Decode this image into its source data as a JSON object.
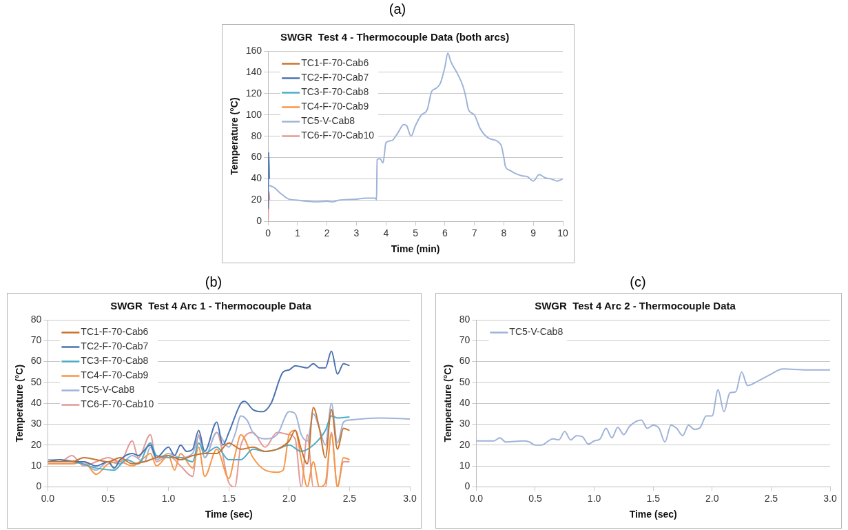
{
  "chart_data": [
    {
      "type": "line",
      "title": "SWGR  Test 4 - Thermocouple Data (both arcs)",
      "xlabel": "Time (min)",
      "ylabel": "Temperature (°C)",
      "annotations": [
        "(a)"
      ],
      "xlim": [
        0,
        10
      ],
      "xticks": [
        0,
        1,
        2,
        3,
        4,
        5,
        6,
        7,
        8,
        9,
        10
      ],
      "ylim": [
        0,
        160
      ],
      "yticks": [
        0,
        20,
        40,
        60,
        80,
        100,
        120,
        140,
        160
      ],
      "grid": "y",
      "legend": "top left",
      "marker": "none",
      "line_style": "solid",
      "series": [
        {
          "name": "TC1-F-70-Cab6",
          "color": "#c8732e"
        },
        {
          "name": "TC2-F-70-Cab7",
          "color": "#4a72b0",
          "x": [
            0,
            0.02,
            0.04
          ],
          "values": [
            12,
            65,
            40
          ]
        },
        {
          "name": "TC3-F-70-Cab8",
          "color": "#4bacc6"
        },
        {
          "name": "TC4-F-70-Cab9",
          "color": "#f79646"
        },
        {
          "name": "TC5-V-Cab8",
          "color": "#9fb3d9",
          "x": [
            0.03,
            0.2,
            0.4,
            0.7,
            1,
            1.3,
            1.6,
            2,
            2.2,
            2.4,
            3,
            3.3,
            3.65,
            3.68,
            3.7,
            3.8,
            3.9,
            4.0,
            4.2,
            4.4,
            4.6,
            4.7,
            4.85,
            5.0,
            5.2,
            5.4,
            5.55,
            5.7,
            5.85,
            6.0,
            6.1,
            6.2,
            6.4,
            6.6,
            6.7,
            6.8,
            7.0,
            7.2,
            7.5,
            7.9,
            8.0,
            8.05,
            8.2,
            8.4,
            8.6,
            8.8,
            9.0,
            9.2,
            9.4,
            9.6,
            9.8,
            10
          ],
          "values": [
            34,
            32,
            27,
            21,
            20,
            19,
            18.5,
            19,
            18.5,
            20,
            21,
            22,
            22,
            20,
            58,
            59,
            55,
            74,
            76,
            83,
            91,
            90,
            80,
            90,
            100,
            105,
            122,
            125,
            130,
            145,
            158,
            150,
            140,
            128,
            118,
            105,
            100,
            87,
            78,
            72,
            60,
            52,
            48,
            45,
            43,
            42,
            38,
            44,
            41,
            40,
            38,
            40
          ]
        },
        {
          "name": "TC6-F-70-Cab10",
          "color": "#e39a97",
          "x": [
            0,
            0.03,
            0.05
          ],
          "values": [
            0,
            28,
            20
          ]
        }
      ]
    },
    {
      "type": "line",
      "title": "SWGR  Test 4 Arc 1 - Thermocouple Data",
      "xlabel": "Time (sec)",
      "ylabel": "Temperature (°C)",
      "annotations": [
        "(b)"
      ],
      "xlim": [
        0,
        3
      ],
      "xticks": [
        {
          "value": 0,
          "label": "0.0"
        },
        {
          "value": 0.5,
          "label": "0.5"
        },
        {
          "value": 1,
          "label": "1.0"
        },
        {
          "value": 1.5,
          "label": "1.5"
        },
        {
          "value": 2,
          "label": "2.0"
        },
        {
          "value": 2.5,
          "label": "2.5"
        },
        {
          "value": 3,
          "label": "3.0"
        }
      ],
      "ylim": [
        0,
        80
      ],
      "yticks": [
        0,
        10,
        20,
        30,
        40,
        50,
        60,
        70,
        80
      ],
      "grid": "y",
      "legend": "top left",
      "marker": "none",
      "line_style": "solid",
      "series": [
        {
          "name": "TC1-F-70-Cab6",
          "color": "#c8732e",
          "x": [
            0,
            0.2,
            0.3,
            0.4,
            0.5,
            0.6,
            0.7,
            0.8,
            0.9,
            1.0,
            1.1,
            1.2,
            1.3,
            1.4,
            1.5,
            1.6,
            1.7,
            1.8,
            1.9,
            2.0,
            2.05,
            2.1,
            2.15,
            2.2,
            2.25,
            2.3,
            2.35,
            2.4,
            2.45,
            2.5
          ],
          "values": [
            12,
            12,
            14,
            13,
            12,
            14,
            11,
            12,
            14,
            15,
            13,
            15,
            16,
            16,
            21,
            18,
            19,
            17,
            18,
            22,
            27,
            18,
            11,
            38,
            28,
            14,
            37,
            18,
            28,
            27
          ]
        },
        {
          "name": "TC2-F-70-Cab7",
          "color": "#4a72b0",
          "x": [
            0,
            0.1,
            0.2,
            0.3,
            0.4,
            0.5,
            0.55,
            0.6,
            0.7,
            0.75,
            0.85,
            0.9,
            1.0,
            1.05,
            1.1,
            1.15,
            1.2,
            1.25,
            1.3,
            1.4,
            1.45,
            1.5,
            1.6,
            1.63,
            1.7,
            1.78,
            1.85,
            1.95,
            2.0,
            2.05,
            2.15,
            2.2,
            2.25,
            2.3,
            2.35,
            2.4,
            2.45,
            2.5
          ],
          "values": [
            12,
            13,
            12,
            12,
            10,
            12,
            9,
            13,
            16,
            15,
            20,
            14,
            19,
            15,
            20,
            17,
            18,
            27,
            17,
            31,
            20,
            26,
            40,
            41,
            37,
            36,
            40,
            55,
            56,
            58,
            57,
            59,
            57,
            57,
            65,
            54,
            59,
            58
          ]
        },
        {
          "name": "TC3-F-70-Cab8",
          "color": "#4bacc6",
          "x": [
            0,
            0.2,
            0.4,
            0.55,
            0.65,
            0.75,
            0.85,
            0.9,
            1.0,
            1.1,
            1.2,
            1.25,
            1.3,
            1.4,
            1.5,
            1.6,
            1.7,
            1.8,
            1.9,
            2.0,
            2.1,
            2.2,
            2.3,
            2.35,
            2.4,
            2.5
          ],
          "values": [
            12,
            12,
            9,
            8,
            13,
            11,
            21,
            15,
            14,
            14,
            12,
            21,
            16,
            19,
            13,
            13,
            18,
            17,
            18,
            20,
            17,
            20,
            27,
            34,
            33,
            33.5
          ]
        },
        {
          "name": "TC4-F-70-Cab9",
          "color": "#f79646",
          "x": [
            0,
            0.2,
            0.3,
            0.4,
            0.5,
            0.6,
            0.7,
            0.8,
            0.85,
            0.9,
            1.0,
            1.05,
            1.1,
            1.2,
            1.25,
            1.3,
            1.4,
            1.5,
            1.55,
            1.6,
            1.7,
            1.8,
            1.9,
            1.95,
            2.0,
            2.05,
            2.1,
            2.15,
            2.2,
            2.25,
            2.3,
            2.35,
            2.4,
            2.45,
            2.5
          ],
          "values": [
            11,
            11,
            12,
            6,
            11,
            12,
            10,
            14,
            16,
            10,
            15,
            8,
            16,
            9,
            19,
            5,
            18,
            4,
            15,
            25,
            14,
            8,
            7,
            8,
            25,
            27,
            13,
            0,
            12,
            0,
            2,
            25,
            0,
            14,
            13
          ]
        },
        {
          "name": "TC5-V-Cab8",
          "color": "#9fb3d9",
          "x": [
            0,
            0.1,
            0.3,
            0.4,
            0.5,
            0.6,
            0.7,
            0.8,
            0.85,
            0.9,
            1.0,
            1.1,
            1.2,
            1.25,
            1.3,
            1.4,
            1.5,
            1.55,
            1.6,
            1.65,
            1.7,
            1.8,
            1.9,
            2.0,
            2.05,
            2.1,
            2.15,
            2.2,
            2.25,
            2.3,
            2.35,
            2.4,
            2.45,
            2.5,
            2.75,
            3.0
          ],
          "values": [
            13,
            13,
            11,
            8,
            12,
            11,
            15,
            12,
            19,
            13,
            16,
            14,
            16,
            24,
            14,
            26,
            19,
            25,
            34,
            32,
            26,
            23,
            25,
            36,
            35,
            25,
            22,
            35,
            28,
            20,
            40,
            21,
            31,
            32,
            33,
            32.5
          ]
        },
        {
          "name": "TC6-F-70-Cab10",
          "color": "#e39a97",
          "x": [
            0,
            0.1,
            0.2,
            0.3,
            0.4,
            0.5,
            0.6,
            0.7,
            0.75,
            0.85,
            0.9,
            1.0,
            1.1,
            1.2,
            1.25,
            1.3,
            1.4,
            1.5,
            1.55,
            1.6,
            1.7,
            1.8,
            1.9,
            2.0,
            2.05,
            2.1,
            2.15,
            2.2,
            2.25,
            2.3,
            2.35,
            2.4,
            2.45,
            2.5
          ],
          "values": [
            12,
            12,
            15,
            10,
            12,
            14,
            12,
            22,
            14,
            25,
            12,
            15,
            10,
            5,
            25,
            14,
            26,
            2,
            0,
            20,
            26,
            19,
            26,
            25,
            23,
            0,
            25,
            0,
            0,
            0,
            26,
            0,
            12,
            12
          ]
        }
      ]
    },
    {
      "type": "line",
      "title": "SWGR  Test 4 Arc 2 - Thermocouple Data",
      "xlabel": "Time (sec)",
      "ylabel": "Temperature (°C)",
      "annotations": [
        "(c)"
      ],
      "xlim": [
        0,
        3
      ],
      "xticks": [
        {
          "value": 0,
          "label": "0.0"
        },
        {
          "value": 0.5,
          "label": "0.5"
        },
        {
          "value": 1,
          "label": "1.0"
        },
        {
          "value": 1.5,
          "label": "1.5"
        },
        {
          "value": 2,
          "label": "2.0"
        },
        {
          "value": 2.5,
          "label": "2.5"
        },
        {
          "value": 3,
          "label": "3.0"
        }
      ],
      "ylim": [
        0,
        80
      ],
      "yticks": [
        0,
        10,
        20,
        30,
        40,
        50,
        60,
        70,
        80
      ],
      "grid": "y",
      "legend": "top left",
      "marker": "none",
      "line_style": "solid",
      "series": [
        {
          "name": "TC5-V-Cab8",
          "color": "#9fb3d9",
          "x": [
            0,
            0.15,
            0.2,
            0.25,
            0.4,
            0.45,
            0.5,
            0.55,
            0.65,
            0.7,
            0.75,
            0.8,
            0.85,
            0.9,
            0.95,
            1.0,
            1.05,
            1.1,
            1.15,
            1.2,
            1.25,
            1.3,
            1.4,
            1.45,
            1.5,
            1.55,
            1.6,
            1.65,
            1.7,
            1.75,
            1.8,
            1.85,
            1.9,
            1.95,
            2.0,
            2.05,
            2.1,
            2.15,
            2.2,
            2.25,
            2.3,
            2.4,
            2.5,
            2.6,
            2.8,
            3.0
          ],
          "values": [
            22,
            22,
            23.5,
            21.5,
            22,
            21.5,
            20,
            20,
            23,
            22.5,
            26.5,
            22.5,
            24.5,
            24,
            20.5,
            22,
            23,
            28,
            23.5,
            28.5,
            25,
            29,
            32,
            28,
            29.5,
            28,
            21.5,
            29.5,
            28,
            24.5,
            29.5,
            27.5,
            28.5,
            34,
            34,
            46.5,
            36,
            45,
            45.5,
            55,
            48.5,
            51,
            54,
            56.5,
            56,
            56
          ]
        }
      ]
    }
  ]
}
